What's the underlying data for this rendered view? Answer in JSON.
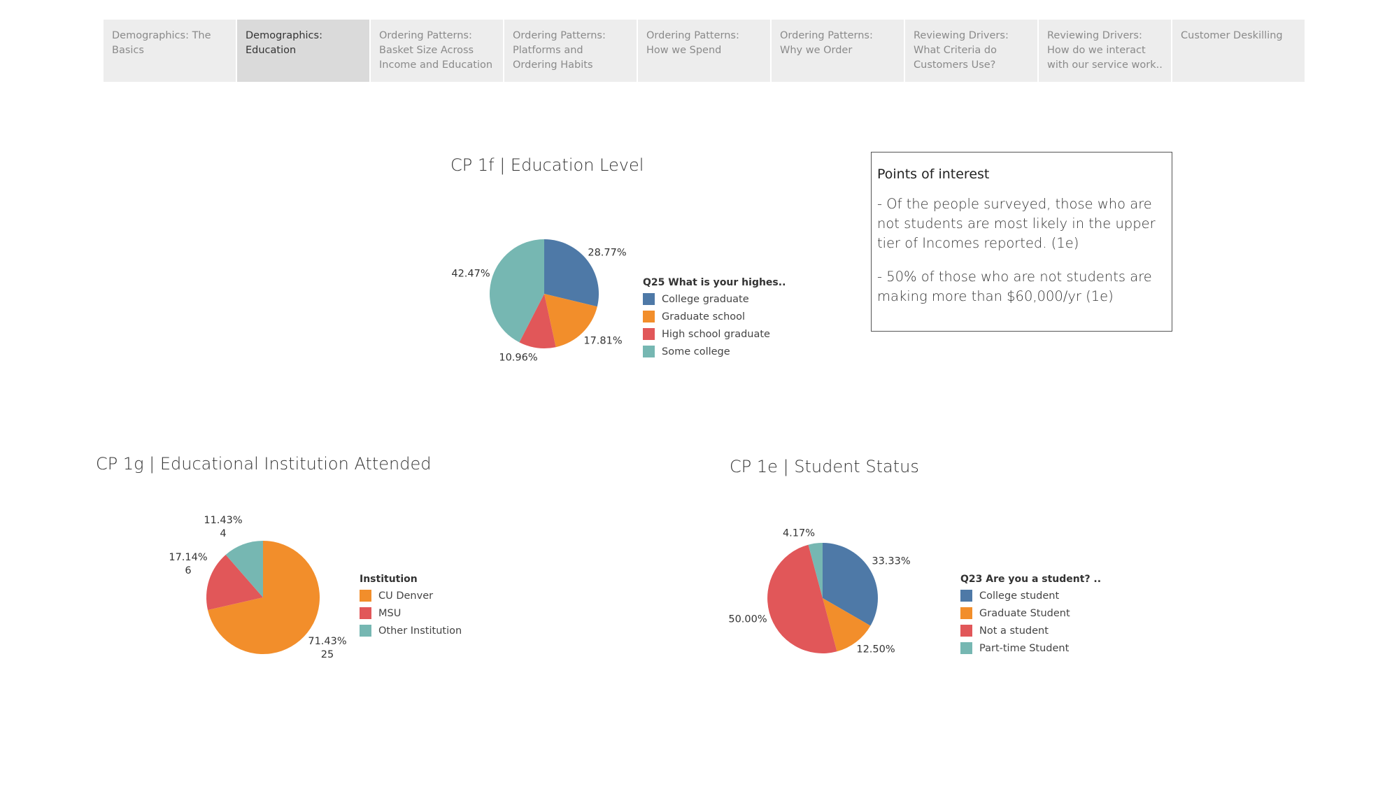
{
  "tabs": [
    {
      "label": "Demographics: The Basics",
      "active": false
    },
    {
      "label": "Demographics: Education",
      "active": true
    },
    {
      "label": "Ordering Patterns: Basket Size Across Income and Education",
      "active": false
    },
    {
      "label": "Ordering Patterns: Platforms and Ordering Habits",
      "active": false
    },
    {
      "label": "Ordering Patterns: How we Spend",
      "active": false
    },
    {
      "label": "Ordering Patterns: Why we Order",
      "active": false
    },
    {
      "label": "Reviewing Drivers: What Criteria do Customers Use?",
      "active": false
    },
    {
      "label": "Reviewing Drivers: How do we interact with our service work..",
      "active": false
    },
    {
      "label": "Customer Deskilling",
      "active": false
    }
  ],
  "points_of_interest": {
    "heading": "Points of interest",
    "items": [
      "- Of the people surveyed, those who are not students are most likely in the upper tier of Incomes reported. (1e)",
      "- 50% of those who are not students are making more than $60,000/yr (1e)"
    ]
  },
  "colors": {
    "blue": "#4e79a7",
    "orange": "#f28e2b",
    "red": "#e15759",
    "teal": "#76b7b2"
  },
  "chart_data": [
    {
      "type": "pie",
      "title": "CP 1f | Education Level",
      "legend_title": "Q25 What is your highes..",
      "legend_placement": "right",
      "categories": [
        "College graduate",
        "Graduate school",
        "High school graduate",
        "Some college"
      ],
      "values": [
        28.77,
        17.81,
        10.96,
        42.47
      ],
      "labels": [
        "28.77%",
        "17.81%",
        "10.96%",
        "42.47%"
      ],
      "colors": [
        "#4e79a7",
        "#f28e2b",
        "#e15759",
        "#76b7b2"
      ]
    },
    {
      "type": "pie",
      "title": "CP 1g | Educational Institution Attended",
      "legend_title": "Institution",
      "legend_placement": "right",
      "categories": [
        "CU Denver",
        "MSU",
        "Other Institution"
      ],
      "values": [
        71.43,
        17.14,
        11.43
      ],
      "counts": [
        25,
        6,
        4
      ],
      "labels": [
        "71.43%",
        "17.14%",
        "11.43%"
      ],
      "colors": [
        "#f28e2b",
        "#e15759",
        "#76b7b2"
      ]
    },
    {
      "type": "pie",
      "title": "CP 1e | Student Status",
      "legend_title": "Q23 Are you a student? ..",
      "legend_placement": "right",
      "categories": [
        "College student",
        "Graduate Student",
        "Not a student",
        "Part-time Student"
      ],
      "values": [
        33.33,
        12.5,
        50.0,
        4.17
      ],
      "labels": [
        "33.33%",
        "12.50%",
        "50.00%",
        "4.17%"
      ],
      "colors": [
        "#4e79a7",
        "#f28e2b",
        "#e15759",
        "#76b7b2"
      ]
    }
  ]
}
